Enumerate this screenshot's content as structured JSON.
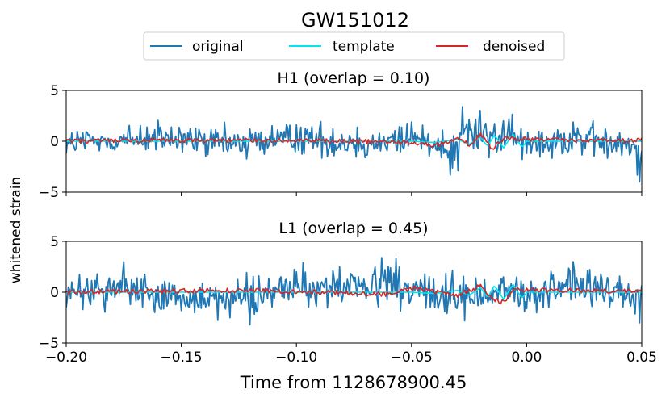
{
  "chart_data": {
    "type": "line",
    "title": "GW151012",
    "xlabel": "Time from 1128678900.45",
    "ylabel": "whitened strain",
    "xlim": [
      -0.2,
      0.05
    ],
    "x_ticks": [
      -0.2,
      -0.15,
      -0.1,
      -0.05,
      0.0,
      0.05
    ],
    "x_tick_labels": [
      "−0.20",
      "−0.15",
      "−0.10",
      "−0.05",
      "0.00",
      "0.05"
    ],
    "legend": {
      "placement": "top-center",
      "entries": [
        {
          "label": "original",
          "color": "#1f77b4"
        },
        {
          "label": "template",
          "color": "#00e5ee"
        },
        {
          "label": "denoised",
          "color": "#d62728"
        }
      ]
    },
    "panels": [
      {
        "name": "H1",
        "title": "H1 (overlap = 0.10)",
        "ylim": [
          -5,
          5
        ],
        "y_ticks": [
          5,
          0,
          -5
        ],
        "y_tick_labels": [
          "5",
          "0",
          "−5"
        ],
        "original_amplitude": 1.0,
        "series": [
          {
            "name": "original",
            "color": "#1f77b4",
            "x": [
              -0.2,
              -0.165,
              -0.13,
              -0.1,
              -0.07,
              -0.05,
              -0.03,
              -0.028,
              -0.01,
              0.0,
              0.02,
              0.049
            ],
            "values": [
              -1.2,
              1.4,
              -1.0,
              1.6,
              -1.6,
              1.9,
              -2.9,
              3.4,
              2.0,
              -1.2,
              1.9,
              -4.0
            ]
          },
          {
            "name": "template",
            "color": "#00e5ee",
            "x": [
              -0.2,
              -0.05,
              -0.04,
              -0.03,
              -0.025,
              -0.02,
              -0.017,
              -0.014,
              -0.01,
              -0.006,
              -0.002,
              0.0,
              0.05
            ],
            "values": [
              0,
              0,
              -0.12,
              0.18,
              -0.3,
              0.4,
              -0.5,
              0.6,
              -0.65,
              0.7,
              -0.6,
              0,
              0
            ]
          },
          {
            "name": "denoised",
            "color": "#d62728",
            "x": [
              -0.2,
              -0.12,
              -0.05,
              -0.04,
              -0.03,
              -0.025,
              -0.02,
              -0.015,
              -0.01,
              0.0,
              0.02,
              0.05
            ],
            "values": [
              0.0,
              0.1,
              -0.1,
              -0.4,
              0.2,
              -0.3,
              0.7,
              -0.8,
              0.3,
              0.2,
              0.1,
              0.1
            ]
          }
        ]
      },
      {
        "name": "L1",
        "title": "L1 (overlap = 0.45)",
        "ylim": [
          -5,
          5
        ],
        "y_ticks": [
          5,
          0,
          -5
        ],
        "y_tick_labels": [
          "5",
          "0",
          "−5"
        ],
        "original_amplitude": 1.1,
        "series": [
          {
            "name": "original",
            "color": "#1f77b4",
            "x": [
              -0.2,
              -0.175,
              -0.15,
              -0.12,
              -0.1,
              -0.06,
              -0.027,
              -0.01,
              0.0,
              0.02,
              0.049
            ],
            "values": [
              -1.5,
              3.0,
              -1.8,
              -3.2,
              2.0,
              2.5,
              -2.8,
              1.5,
              -1.6,
              3.0,
              -3.0
            ]
          },
          {
            "name": "template",
            "color": "#00e5ee",
            "x": [
              -0.2,
              -0.05,
              -0.04,
              -0.03,
              -0.025,
              -0.02,
              -0.017,
              -0.014,
              -0.01,
              -0.006,
              -0.002,
              0.0,
              0.05
            ],
            "values": [
              0,
              0,
              -0.12,
              0.18,
              -0.3,
              0.45,
              -0.55,
              0.65,
              -0.7,
              0.75,
              -0.6,
              0,
              0
            ]
          },
          {
            "name": "denoised",
            "color": "#d62728",
            "x": [
              -0.2,
              -0.12,
              -0.06,
              -0.05,
              -0.03,
              -0.02,
              -0.015,
              -0.01,
              -0.005,
              0.0,
              0.05
            ],
            "values": [
              0.0,
              0.2,
              -0.2,
              0.4,
              -0.3,
              0.6,
              -0.7,
              -1.0,
              0.4,
              0.2,
              0.1
            ]
          }
        ]
      }
    ]
  }
}
